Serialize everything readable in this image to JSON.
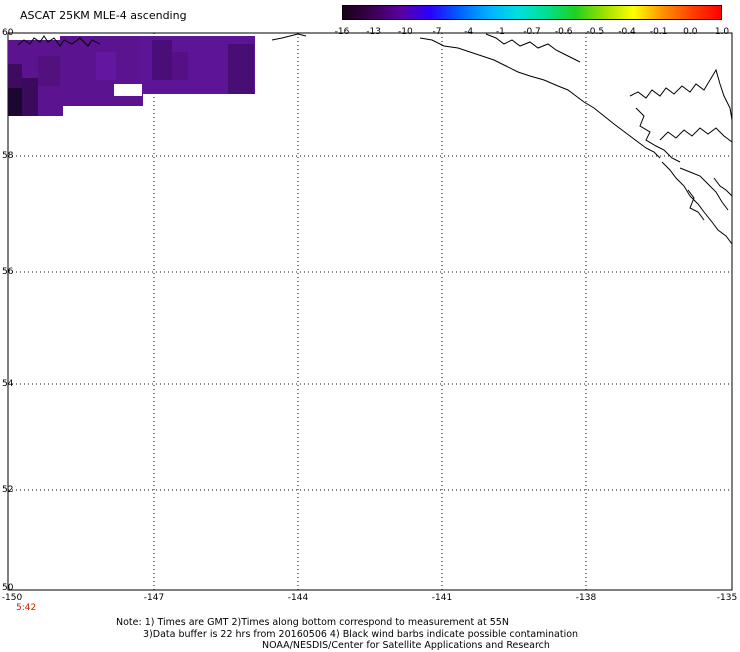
{
  "title": "ASCAT 25KM MLE-4 ascending",
  "colorbar": {
    "labels": [
      "-16",
      "-13",
      "-10",
      "-7",
      "-4",
      "-1",
      "-0.7",
      "-0.6",
      "-0.5",
      "-0.4",
      "-0.1",
      "0.0",
      "1.0"
    ],
    "colors": [
      "#1a0019",
      "#3a0050",
      "#5a00a0",
      "#2a00ff",
      "#0060ff",
      "#00b0ff",
      "#00e0e0",
      "#00e090",
      "#20d020",
      "#a0e000",
      "#ffff00",
      "#ff9000",
      "#ff4000",
      "#ff0000"
    ]
  },
  "map": {
    "lat_labels": [
      "60",
      "58",
      "56",
      "54",
      "52",
      "50"
    ],
    "lon_labels": [
      "-150",
      "-147",
      "-144",
      "-141",
      "-138",
      "-135"
    ],
    "time_label": "5:42",
    "swath_color": "#5b1390",
    "coast_color": "#000000"
  },
  "notes": {
    "line1": "Note: 1) Times are GMT 2)Times along bottom correspond to measurement at 55N",
    "line2": "3)Data buffer is 22 hrs from 20160506 4) Black wind barbs indicate possible contamination",
    "line3": "NOAA/NESDIS/Center for Satellite Applications and Research"
  }
}
